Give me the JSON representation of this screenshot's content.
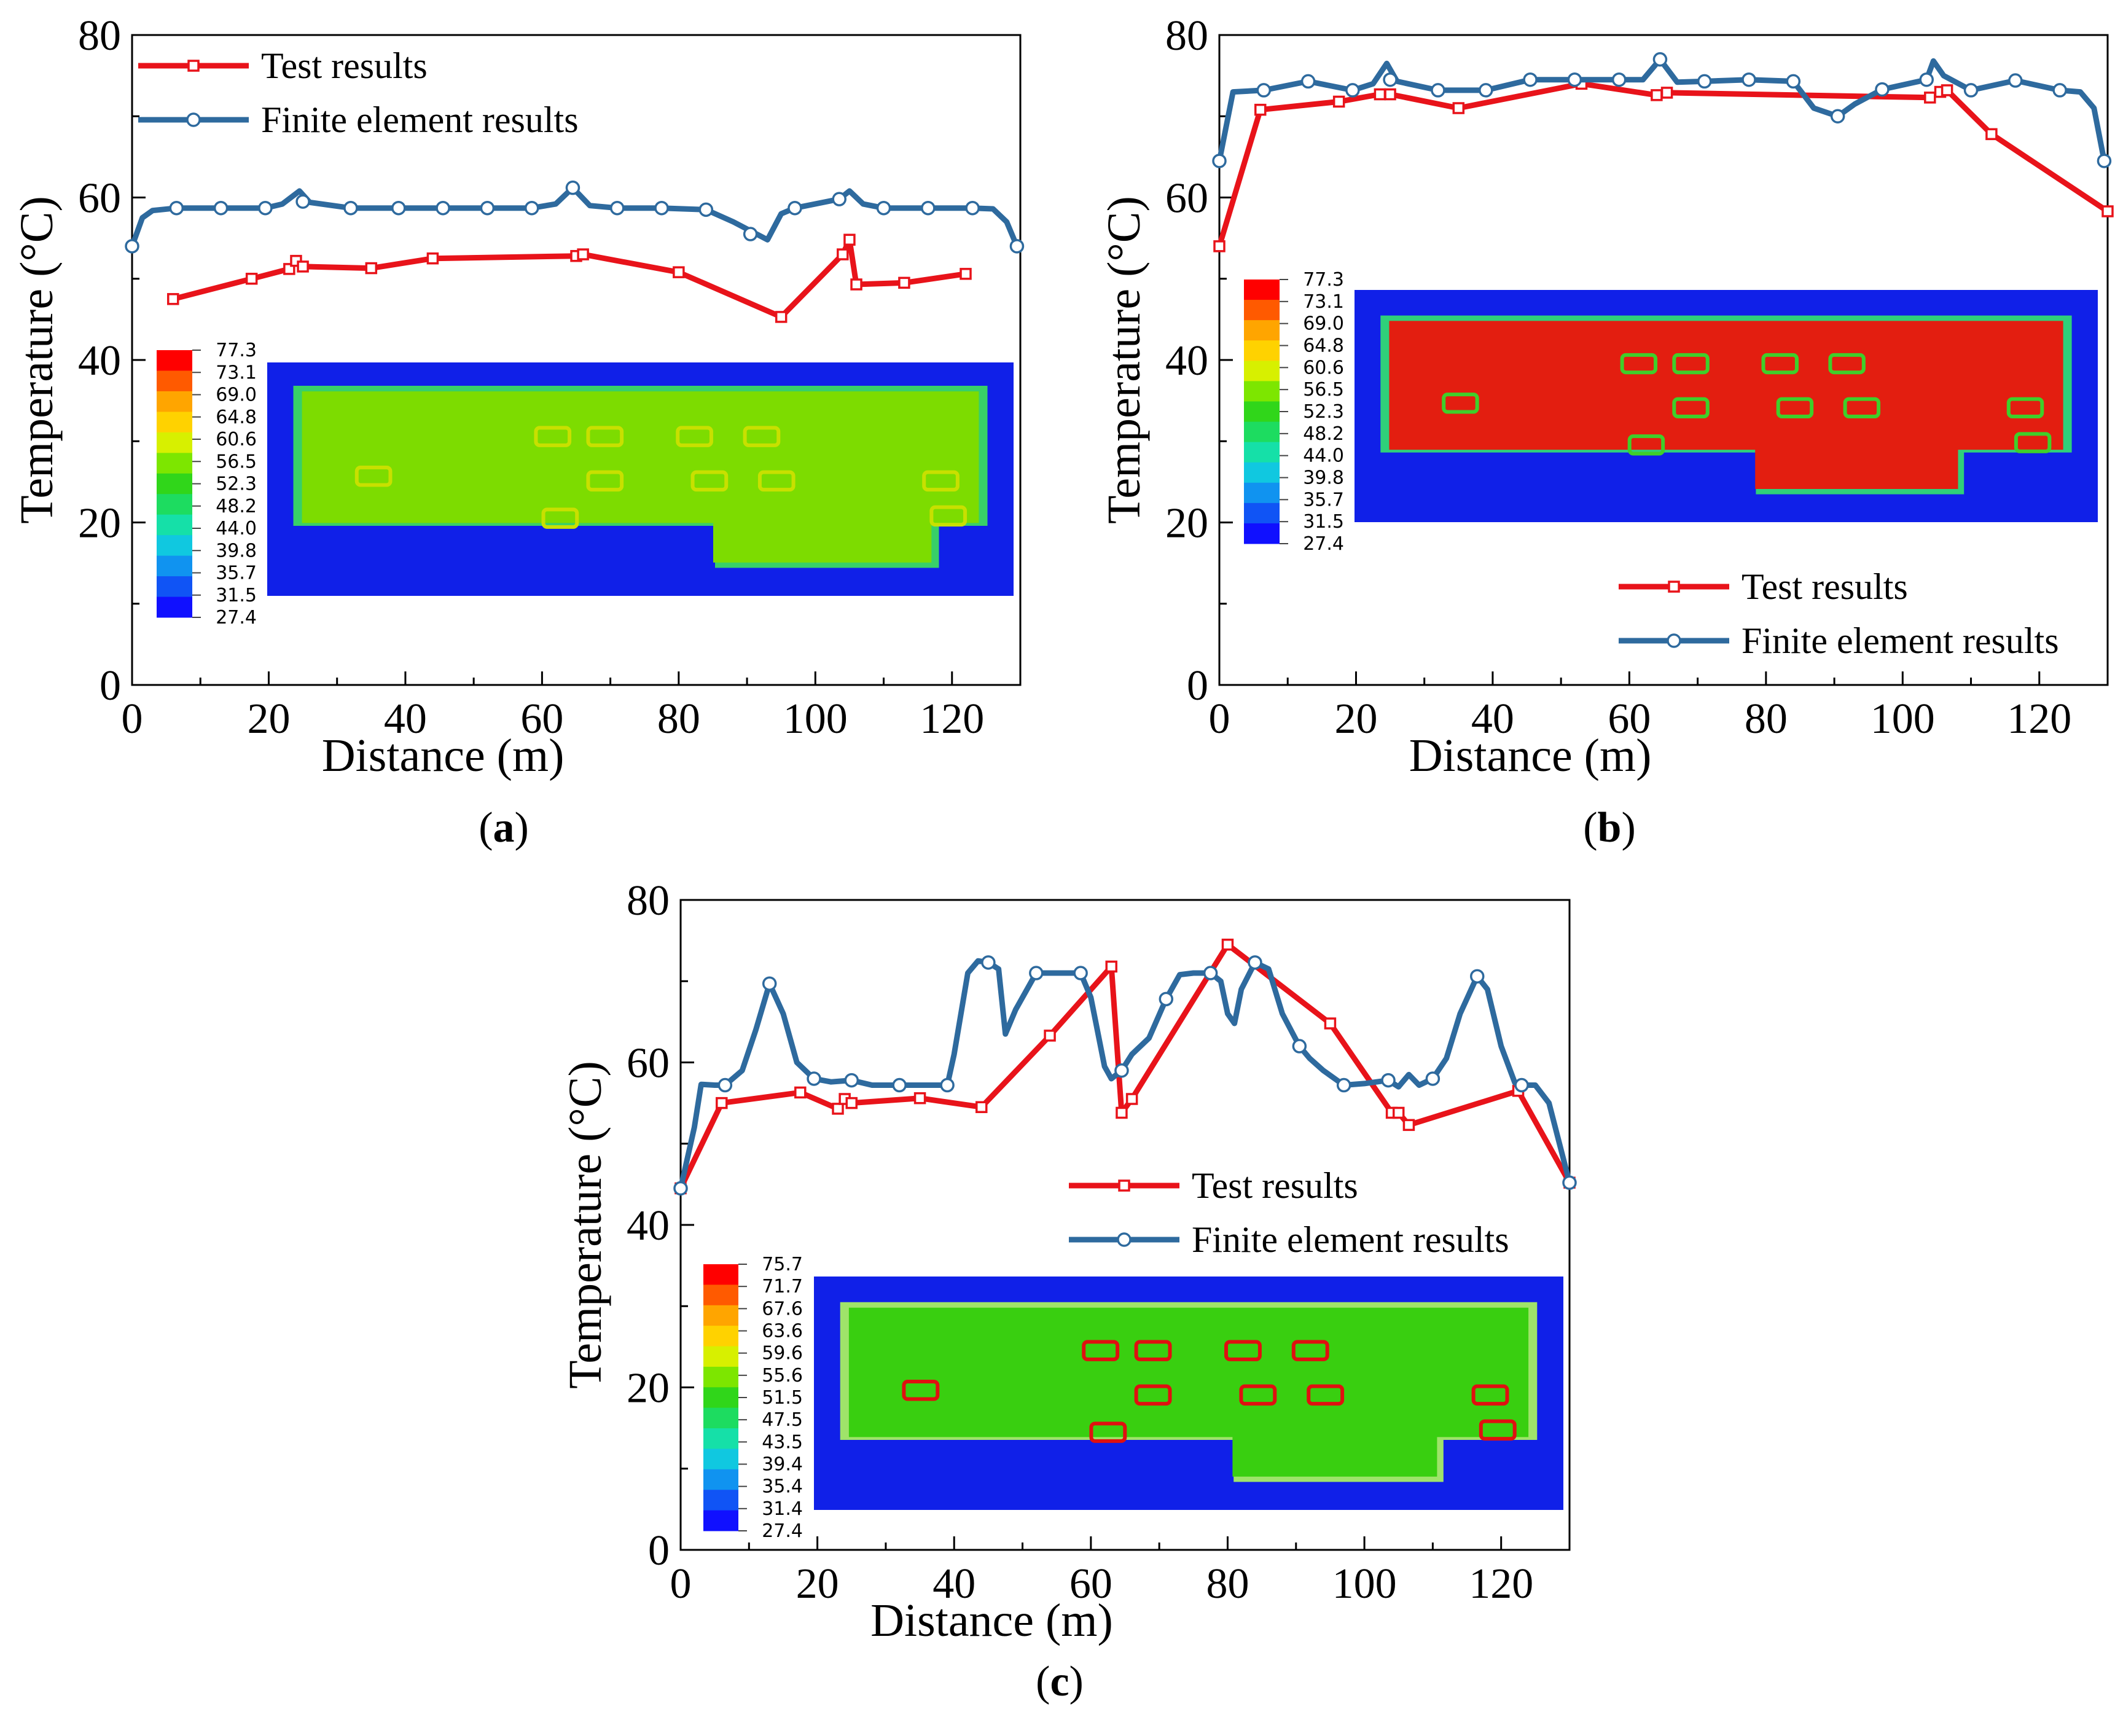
{
  "chart_data": [
    {
      "type": "line",
      "caption": "a",
      "xlabel": "Distance (m)",
      "ylabel": "Temperature (°C)",
      "xlim": [
        0,
        130
      ],
      "ylim": [
        0,
        80
      ],
      "xticks": [
        "0",
        "20",
        "40",
        "60",
        "80",
        "100",
        "120"
      ],
      "yticks": [
        "0",
        "20",
        "40",
        "60",
        "80"
      ],
      "legend_position": "top-left",
      "series": [
        {
          "name": "Test results",
          "color": "#e8131a",
          "marker": "square",
          "x": [
            6,
            17.5,
            23,
            24,
            25,
            35,
            44,
            65,
            66,
            80,
            95,
            104,
            105,
            106,
            113,
            122
          ],
          "y": [
            47.5,
            50.0,
            51.2,
            52.2,
            51.5,
            51.3,
            52.5,
            52.8,
            53.0,
            50.8,
            45.3,
            53.0,
            54.8,
            49.3,
            49.5,
            50.6
          ]
        },
        {
          "name": "Finite element results",
          "color": "#2e6a9e",
          "marker": "circle",
          "x": [
            0,
            6.5,
            13,
            19.5,
            25,
            32,
            39,
            45.5,
            52,
            58.5,
            64.5,
            71,
            77.5,
            84,
            90.5,
            97,
            103.5,
            110,
            116.5,
            123,
            129.5
          ],
          "y": [
            54,
            58.7,
            58.7,
            58.7,
            59.5,
            58.7,
            58.7,
            58.7,
            58.7,
            58.7,
            61.2,
            58.7,
            58.7,
            58.5,
            55.5,
            58.7,
            59.8,
            58.7,
            58.7,
            58.7,
            54
          ],
          "line_x": [
            0,
            1.5,
            3,
            6.5,
            13,
            19.5,
            22,
            24.5,
            26,
            32,
            39,
            45.5,
            52,
            58.5,
            62,
            64.5,
            67,
            71,
            77.5,
            84,
            88,
            93,
            95,
            97,
            103.5,
            105,
            107,
            110,
            116.5,
            123,
            126,
            128,
            129.5
          ],
          "line_y": [
            54,
            57.5,
            58.4,
            58.7,
            58.7,
            58.7,
            59.2,
            60.8,
            59.4,
            58.7,
            58.7,
            58.7,
            58.7,
            58.7,
            59.2,
            61.2,
            59.0,
            58.7,
            58.7,
            58.5,
            57.0,
            54.8,
            58.0,
            58.7,
            59.8,
            60.8,
            59.2,
            58.7,
            58.7,
            58.7,
            58.6,
            57.0,
            54
          ]
        }
      ],
      "contour_inset": {
        "colorbar_labels": [
          "77.3",
          "73.1",
          "69.0",
          "64.8",
          "60.6",
          "56.5",
          "52.3",
          "48.2",
          "44.0",
          "39.8",
          "35.7",
          "31.5",
          "27.4"
        ]
      }
    },
    {
      "type": "line",
      "caption": "b",
      "xlabel": "Distance (m)",
      "ylabel": "Temperature (°C)",
      "xlim": [
        0,
        130
      ],
      "ylim": [
        0,
        80
      ],
      "xticks": [
        "0",
        "20",
        "40",
        "60",
        "80",
        "100",
        "120"
      ],
      "yticks": [
        "0",
        "20",
        "40",
        "60",
        "80"
      ],
      "legend_position": "bottom-right",
      "series": [
        {
          "name": "Test results",
          "color": "#e8131a",
          "marker": "square",
          "x": [
            0,
            6,
            17.5,
            23.5,
            25,
            35,
            53,
            64,
            65.5,
            104,
            105.5,
            106.5,
            113,
            130
          ],
          "y": [
            54.0,
            70.8,
            71.8,
            72.7,
            72.7,
            71.0,
            74.0,
            72.6,
            72.9,
            72.3,
            73.0,
            73.2,
            67.8,
            58.3
          ],
          "line_x": [
            0,
            6,
            17.5,
            23.5,
            25,
            35,
            53,
            64,
            65.5,
            104,
            105.5,
            106.5,
            113,
            130
          ],
          "line_y": [
            54.0,
            70.8,
            71.8,
            72.7,
            72.7,
            71.0,
            74.0,
            72.6,
            72.9,
            72.3,
            73.0,
            73.2,
            67.8,
            58.3
          ]
        },
        {
          "name": "Finite element results",
          "color": "#2e6a9e",
          "marker": "circle",
          "x": [
            0,
            6.5,
            13,
            19.5,
            25,
            32,
            39,
            45.5,
            52,
            58.5,
            64.5,
            71,
            77.5,
            84,
            90.5,
            97,
            103.5,
            110,
            116.5,
            123,
            129.5
          ],
          "y": [
            64.5,
            73.2,
            74.3,
            73.2,
            74.5,
            73.2,
            73.2,
            74.5,
            74.5,
            74.5,
            77.0,
            74.3,
            74.5,
            74.3,
            70.0,
            73.3,
            74.5,
            73.2,
            74.4,
            73.2,
            64.5
          ],
          "line_x": [
            0,
            2,
            6.5,
            13,
            19.5,
            22.5,
            24.5,
            26,
            32,
            39,
            45.5,
            52,
            58.5,
            62,
            64.5,
            67,
            71,
            77.5,
            84,
            87,
            90.5,
            93,
            97,
            103.5,
            104.5,
            106,
            110,
            116.5,
            123,
            126,
            128,
            129.5
          ],
          "line_y": [
            64.5,
            73.0,
            73.2,
            74.3,
            73.2,
            74.0,
            76.5,
            74.3,
            73.2,
            73.2,
            74.5,
            74.5,
            74.5,
            74.5,
            77.0,
            74.2,
            74.3,
            74.5,
            74.3,
            71.0,
            70.0,
            71.5,
            73.3,
            74.5,
            76.8,
            75.0,
            73.2,
            74.4,
            73.2,
            73.0,
            71.0,
            64.5
          ]
        }
      ],
      "contour_inset": {
        "colorbar_labels": [
          "77.3",
          "73.1",
          "69.0",
          "64.8",
          "60.6",
          "56.5",
          "52.3",
          "48.2",
          "44.0",
          "39.8",
          "35.7",
          "31.5",
          "27.4"
        ]
      }
    },
    {
      "type": "line",
      "caption": "c",
      "xlabel": "Distance (m)",
      "ylabel": "Temperature (°C)",
      "xlim": [
        0,
        130
      ],
      "ylim": [
        0,
        80
      ],
      "xticks": [
        "0",
        "20",
        "40",
        "60",
        "80",
        "100",
        "120"
      ],
      "yticks": [
        "0",
        "20",
        "40",
        "60",
        "80"
      ],
      "legend_position": "center-right",
      "series": [
        {
          "name": "Test results",
          "color": "#e8131a",
          "marker": "square",
          "x": [
            0,
            6,
            17.5,
            23,
            24,
            25,
            35,
            44,
            54,
            63,
            64.5,
            66,
            80,
            95,
            104,
            105,
            106.5,
            122.5,
            130
          ],
          "y": [
            44.5,
            55.0,
            56.3,
            54.3,
            55.5,
            55.0,
            55.6,
            54.5,
            63.3,
            71.8,
            53.8,
            55.5,
            74.5,
            64.8,
            53.8,
            53.8,
            52.3,
            56.5,
            45.2
          ]
        },
        {
          "name": "Finite element results",
          "color": "#2e6a9e",
          "marker": "circle",
          "x": [
            0,
            6.5,
            13,
            19.5,
            25,
            32,
            39,
            45,
            52,
            58.5,
            64.5,
            71,
            77.5,
            84,
            90.5,
            97,
            103.5,
            110,
            116.5,
            123,
            130
          ],
          "y": [
            44.5,
            57.2,
            69.7,
            58.0,
            57.8,
            57.2,
            57.2,
            72.3,
            71.0,
            71.0,
            59.0,
            67.8,
            71.0,
            72.3,
            62.0,
            57.2,
            57.8,
            58.0,
            70.6,
            57.2,
            45.2
          ],
          "line_x": [
            0,
            2,
            3,
            5,
            6.5,
            9,
            11,
            13,
            15,
            17,
            19.5,
            22,
            25,
            28,
            32,
            39,
            40,
            42,
            43.5,
            45,
            46.5,
            47.5,
            49,
            52,
            56,
            58.5,
            60,
            62,
            63,
            64.5,
            66,
            68.5,
            71,
            73,
            75,
            77.5,
            79,
            80,
            81,
            82,
            84,
            86,
            88,
            90.5,
            92,
            94,
            97,
            100,
            103.5,
            105,
            106.5,
            108,
            110,
            112,
            114,
            116.5,
            118,
            120,
            122,
            123,
            125,
            127,
            130
          ],
          "line_y": [
            44.5,
            52,
            57.3,
            57.2,
            57.2,
            59,
            64,
            69.7,
            66,
            60,
            58.0,
            57.6,
            57.8,
            57.2,
            57.2,
            57.2,
            61,
            71,
            72.5,
            72.3,
            71.5,
            63.5,
            66.5,
            71.0,
            71.0,
            71.0,
            68,
            59.5,
            58,
            59.0,
            61,
            63,
            67.8,
            70.8,
            71.0,
            71.0,
            70.0,
            66.0,
            64.8,
            69,
            72.3,
            71.5,
            66.0,
            62.0,
            60.5,
            59.0,
            57.2,
            57.4,
            57.8,
            57.0,
            58.5,
            57.2,
            58.0,
            60.5,
            66,
            70.6,
            69,
            62,
            57.5,
            57.2,
            57.2,
            55,
            45.2
          ]
        }
      ],
      "contour_inset": {
        "colorbar_labels": [
          "75.7",
          "71.7",
          "67.6",
          "63.6",
          "59.6",
          "55.6",
          "51.5",
          "47.5",
          "43.5",
          "39.4",
          "35.4",
          "31.4",
          "27.4"
        ]
      }
    }
  ]
}
